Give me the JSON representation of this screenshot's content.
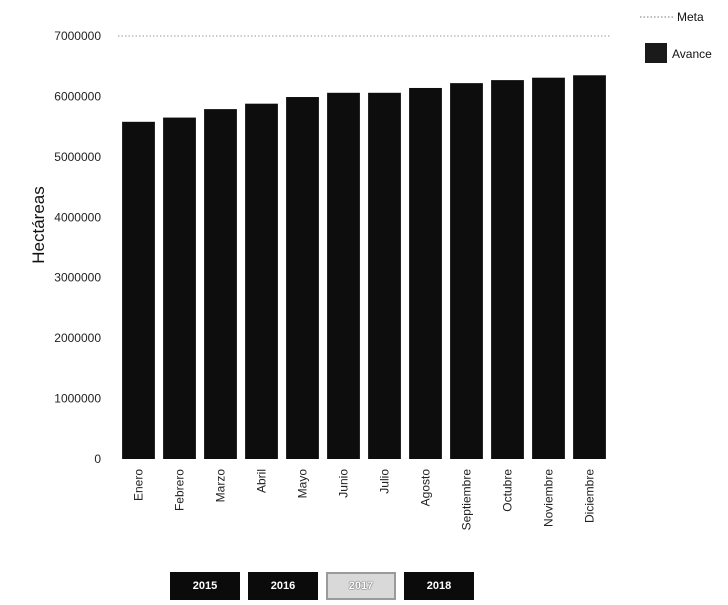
{
  "chart_data": {
    "type": "bar",
    "title": "",
    "ylabel": "Hectáreas",
    "xlabel": "",
    "categories": [
      "Enero",
      "Febrero",
      "Marzo",
      "Abril",
      "Mayo",
      "Junio",
      "Julio",
      "Agosto",
      "Septiembre",
      "Octubre",
      "Noviembre",
      "Diciembre"
    ],
    "series": [
      {
        "name": "Avance",
        "type": "bar",
        "color": "#0d0d0d",
        "values": [
          5580000,
          5650000,
          5790000,
          5880000,
          5990000,
          6060000,
          6060000,
          6140000,
          6220000,
          6270000,
          6310000,
          6350000
        ]
      },
      {
        "name": "Meta",
        "type": "line",
        "style": "dotted",
        "color": "#9a9a9a",
        "values": [
          7000000,
          7000000,
          7000000,
          7000000,
          7000000,
          7000000,
          7000000,
          7000000,
          7000000,
          7000000,
          7000000,
          7000000
        ]
      }
    ],
    "ylim": [
      0,
      7000000
    ],
    "yticks": [
      "0",
      "1000000",
      "2000000",
      "3000000",
      "4000000",
      "5000000",
      "6000000",
      "7000000"
    ],
    "grid": false,
    "legend": "top-right"
  },
  "year_tabs": [
    {
      "label": "2015"
    },
    {
      "label": "2016"
    },
    {
      "label": "2017"
    },
    {
      "label": "2018"
    }
  ],
  "active_year": "2017"
}
